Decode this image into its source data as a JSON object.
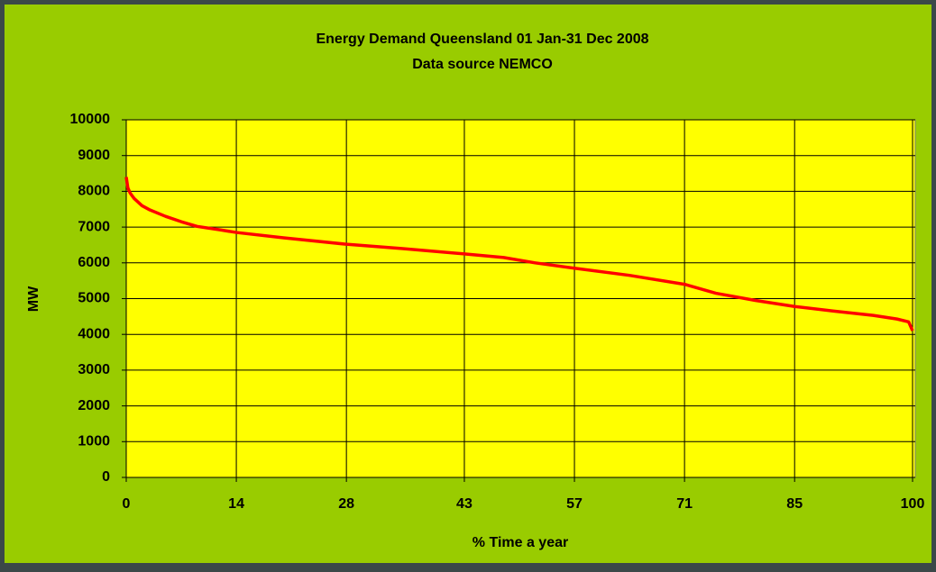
{
  "chart_data": {
    "type": "line",
    "title": "Energy Demand Queensland 01 Jan-31 Dec 2008",
    "subtitle": "Data source NEMCO",
    "x_label": "% Time a year",
    "y_label": "MW",
    "x": [
      0,
      0.2,
      0.5,
      1,
      2,
      3,
      5,
      7,
      9,
      12,
      14,
      20,
      28,
      35,
      43,
      48,
      52,
      57,
      64,
      71,
      75,
      80,
      85,
      90,
      95,
      98,
      99.5,
      100
    ],
    "series": [
      {
        "name": "MW",
        "color": "#ff0000",
        "values": [
          8400,
          8100,
          7950,
          7800,
          7600,
          7480,
          7300,
          7150,
          7020,
          6920,
          6850,
          6700,
          6520,
          6400,
          6250,
          6150,
          6000,
          5850,
          5650,
          5400,
          5150,
          4950,
          4780,
          4650,
          4530,
          4430,
          4350,
          4100
        ]
      }
    ],
    "xlim": [
      0,
      100
    ],
    "xticks": [
      0,
      14,
      28,
      43,
      57,
      71,
      85,
      100
    ],
    "ylim": [
      0,
      10000
    ],
    "yticks": [
      0,
      1000,
      2000,
      3000,
      4000,
      5000,
      6000,
      7000,
      8000,
      9000,
      10000
    ],
    "grid": true,
    "legend": false
  }
}
